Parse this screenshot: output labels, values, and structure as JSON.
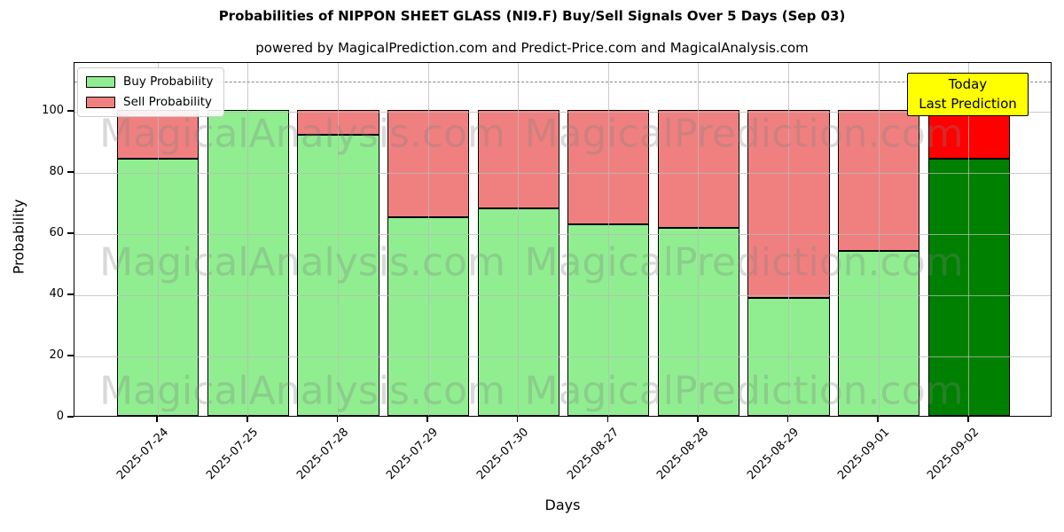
{
  "header": {
    "title": "Probabilities of NIPPON SHEET GLASS (NI9.F) Buy/Sell Signals Over 5 Days (Sep 03)",
    "subtitle": "powered by MagicalPrediction.com and Predict-Price.com and MagicalAnalysis.com"
  },
  "legend": {
    "items": [
      {
        "label": "Buy Probability",
        "color": "#90ee90"
      },
      {
        "label": "Sell Probability",
        "color": "#f08080"
      }
    ]
  },
  "annotation": {
    "line1": "Today",
    "line2": "Last Prediction",
    "bg_color": "#ffff00"
  },
  "watermarks": {
    "left_text": "MagicalAnalysis.com",
    "right_text": "MagicalPrediction.com",
    "rows": 3
  },
  "chart_data": {
    "type": "bar",
    "stacked": true,
    "title": "Probabilities of NIPPON SHEET GLASS (NI9.F) Buy/Sell Signals Over 5 Days (Sep 03)",
    "xlabel": "Days",
    "ylabel": "Probability",
    "ylim": [
      0,
      116
    ],
    "yticks": [
      0,
      20,
      40,
      60,
      80,
      100
    ],
    "grid": true,
    "legend_position": "upper left",
    "dashed_guide_y": 110,
    "categories": [
      "2025-07-24",
      "2025-07-25",
      "2025-07-28",
      "2025-07-29",
      "2025-07-30",
      "2025-08-27",
      "2025-08-28",
      "2025-08-29",
      "2025-09-01",
      "2025-09-02"
    ],
    "series": [
      {
        "name": "Buy Probability",
        "color": "#90ee90",
        "today_color": "#008000",
        "values": [
          84,
          100,
          92,
          65,
          68,
          62.5,
          61.5,
          38.5,
          54,
          84
        ]
      },
      {
        "name": "Sell Probability",
        "color": "#f08080",
        "today_color": "#ff0000",
        "values": [
          16,
          0,
          8,
          35,
          32,
          37.5,
          38.5,
          61.5,
          46,
          16
        ]
      }
    ],
    "today_index": 9,
    "bar_edge_color": "#000000"
  }
}
